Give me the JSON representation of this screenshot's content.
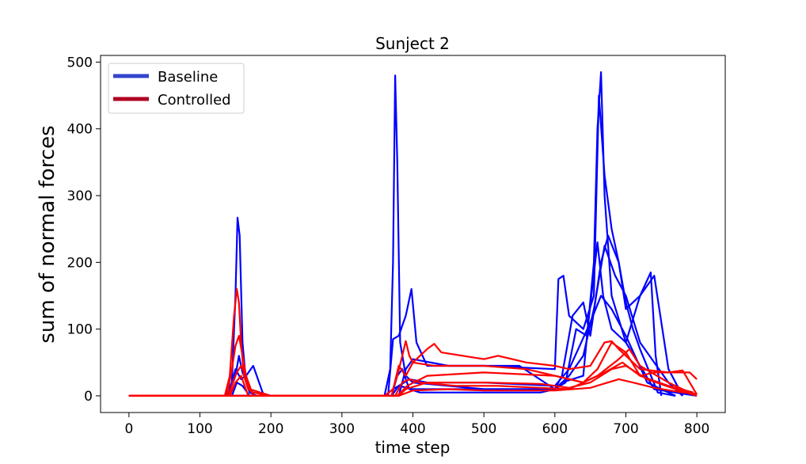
{
  "chart_data": {
    "type": "line",
    "title": "Sunject 2",
    "xlabel": "time step",
    "ylabel": "sum of normal forces",
    "xlim": [
      -40,
      840
    ],
    "ylim": [
      -25,
      510
    ],
    "xticks": [
      0,
      100,
      200,
      300,
      400,
      500,
      600,
      700,
      800
    ],
    "yticks": [
      0,
      100,
      200,
      300,
      400,
      500
    ],
    "grid": false,
    "legend_position": "top-left",
    "legend": [
      {
        "label": "Baseline",
        "color": "#3344cc"
      },
      {
        "label": "Controlled",
        "color": "#b00020"
      }
    ],
    "series": [
      {
        "group": "Baseline",
        "color": "#0000ff",
        "x": [
          0,
          135,
          145,
          150,
          153,
          156,
          160,
          165,
          170,
          180,
          200,
          360,
          368,
          372,
          375,
          378,
          382,
          390,
          400,
          450,
          500,
          550,
          600,
          610,
          640,
          655,
          660,
          665,
          670,
          680,
          700,
          740,
          800
        ],
        "y": [
          0,
          0,
          20,
          150,
          267,
          240,
          80,
          20,
          5,
          0,
          0,
          0,
          40,
          200,
          480,
          350,
          80,
          30,
          20,
          15,
          10,
          10,
          10,
          20,
          30,
          200,
          400,
          485,
          300,
          150,
          80,
          10,
          0
        ]
      },
      {
        "group": "Baseline",
        "color": "#0000ff",
        "x": [
          0,
          140,
          150,
          155,
          160,
          170,
          200,
          365,
          372,
          380,
          390,
          398,
          405,
          420,
          500,
          600,
          605,
          612,
          620,
          640,
          655,
          662,
          670,
          680,
          690,
          700,
          720,
          740,
          760,
          780
        ],
        "y": [
          0,
          0,
          30,
          60,
          35,
          10,
          0,
          0,
          85,
          90,
          120,
          160,
          80,
          45,
          45,
          40,
          175,
          180,
          120,
          100,
          150,
          450,
          330,
          250,
          200,
          130,
          150,
          180,
          40,
          0
        ]
      },
      {
        "group": "Baseline",
        "color": "#0000ff",
        "x": [
          0,
          140,
          150,
          158,
          165,
          175,
          180,
          190,
          370,
          378,
          385,
          395,
          410,
          500,
          580,
          600,
          615,
          630,
          645,
          660,
          668,
          680,
          700,
          720,
          735,
          742,
          750
        ],
        "y": [
          0,
          0,
          40,
          25,
          30,
          45,
          30,
          0,
          0,
          30,
          40,
          10,
          5,
          5,
          5,
          10,
          20,
          100,
          90,
          230,
          150,
          100,
          80,
          150,
          185,
          60,
          0
        ],
        "dash": false
      },
      {
        "group": "Baseline",
        "color": "#0000ff",
        "x": [
          0,
          145,
          152,
          160,
          170,
          380,
          390,
          400,
          450,
          550,
          600,
          610,
          625,
          640,
          650,
          665,
          675,
          690,
          700,
          710,
          720,
          745,
          770
        ],
        "y": [
          0,
          0,
          20,
          15,
          0,
          0,
          40,
          55,
          45,
          45,
          10,
          30,
          120,
          140,
          90,
          200,
          240,
          200,
          140,
          100,
          70,
          5,
          0
        ]
      },
      {
        "group": "Baseline",
        "color": "#0000ff",
        "x": [
          0,
          360,
          372,
          380,
          400,
          500,
          600,
          620,
          640,
          655,
          670,
          685,
          700,
          720,
          760,
          780
        ],
        "y": [
          0,
          0,
          10,
          15,
          10,
          10,
          10,
          30,
          60,
          130,
          225,
          180,
          150,
          80,
          20,
          0
        ]
      },
      {
        "group": "Baseline",
        "color": "#0000ff",
        "x": [
          0,
          370,
          380,
          395,
          420,
          500,
          600,
          620,
          650,
          665,
          680,
          700,
          730,
          770
        ],
        "y": [
          0,
          0,
          15,
          25,
          20,
          20,
          15,
          40,
          110,
          150,
          130,
          90,
          20,
          0
        ]
      },
      {
        "group": "Controlled",
        "color": "#ff0000",
        "x": [
          0,
          135,
          142,
          148,
          152,
          155,
          158,
          162,
          168,
          175,
          200,
          360,
          372,
          378,
          385,
          390,
          395,
          400,
          420,
          430,
          440,
          470,
          500,
          520,
          540,
          560,
          600,
          620,
          650,
          670,
          680,
          690,
          700,
          720,
          760,
          780,
          800
        ],
        "y": [
          0,
          0,
          30,
          120,
          160,
          140,
          80,
          30,
          10,
          5,
          0,
          0,
          10,
          30,
          60,
          82,
          60,
          50,
          70,
          78,
          65,
          60,
          55,
          60,
          55,
          50,
          45,
          40,
          45,
          80,
          82,
          70,
          60,
          40,
          35,
          38,
          2
        ]
      },
      {
        "group": "Controlled",
        "color": "#ff0000",
        "x": [
          0,
          138,
          145,
          150,
          155,
          160,
          165,
          170,
          200,
          370,
          380,
          390,
          400,
          430,
          500,
          560,
          600,
          640,
          660,
          680,
          700,
          720,
          740,
          770,
          790,
          800
        ],
        "y": [
          0,
          0,
          40,
          75,
          90,
          60,
          30,
          10,
          0,
          0,
          45,
          30,
          50,
          45,
          45,
          40,
          30,
          20,
          40,
          80,
          65,
          30,
          35,
          35,
          35,
          25
        ]
      },
      {
        "group": "Controlled",
        "color": "#ff0000",
        "x": [
          0,
          140,
          148,
          152,
          158,
          165,
          175,
          375,
          385,
          395,
          410,
          460,
          520,
          580,
          620,
          660,
          690,
          705,
          720,
          760,
          790
        ],
        "y": [
          0,
          0,
          25,
          35,
          45,
          30,
          0,
          0,
          20,
          25,
          20,
          15,
          15,
          12,
          10,
          30,
          55,
          70,
          45,
          20,
          5
        ]
      },
      {
        "group": "Controlled",
        "color": "#ff0000",
        "x": [
          0,
          142,
          150,
          158,
          168,
          380,
          390,
          420,
          500,
          580,
          620,
          650,
          680,
          700,
          730,
          770,
          800
        ],
        "y": [
          0,
          0,
          20,
          30,
          0,
          0,
          10,
          20,
          20,
          18,
          12,
          20,
          40,
          45,
          25,
          10,
          0
        ]
      },
      {
        "group": "Controlled",
        "color": "#ff0000",
        "x": [
          0,
          378,
          392,
          420,
          500,
          600,
          640,
          670,
          695,
          720,
          760,
          795
        ],
        "y": [
          0,
          0,
          15,
          30,
          35,
          30,
          20,
          35,
          50,
          30,
          15,
          5
        ]
      },
      {
        "group": "Controlled",
        "color": "#ff0000",
        "x": [
          0,
          380,
          400,
          450,
          500,
          600,
          650,
          690,
          710,
          740,
          780,
          800
        ],
        "y": [
          0,
          0,
          8,
          10,
          8,
          8,
          12,
          25,
          20,
          12,
          5,
          3
        ]
      }
    ]
  }
}
